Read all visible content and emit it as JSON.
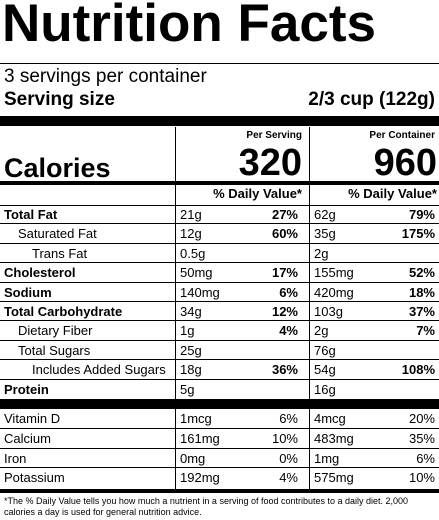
{
  "title": "Nutrition Facts",
  "servings_per_container": "3 servings per container",
  "serving_size_label": "Serving size",
  "serving_size_value": "2/3 cup (122g)",
  "columns": {
    "per_serving": "Per Serving",
    "per_container": "Per Container"
  },
  "calories": {
    "label": "Calories",
    "per_serving": "320",
    "per_container": "960"
  },
  "daily_value_header": "% Daily Value*",
  "nutrients": [
    {
      "name": "Total Fat",
      "bold": true,
      "indent": 0,
      "amt1": "21g",
      "dv1": "27%",
      "amt2": "62g",
      "dv2": "79%"
    },
    {
      "name": "Saturated Fat",
      "bold": false,
      "indent": 1,
      "amt1": "12g",
      "dv1": "60%",
      "amt2": "35g",
      "dv2": "175%"
    },
    {
      "name": "Trans Fat",
      "bold": false,
      "indent": 2,
      "amt1": "0.5g",
      "dv1": "",
      "amt2": "2g",
      "dv2": ""
    },
    {
      "name": "Cholesterol",
      "bold": true,
      "indent": 0,
      "amt1": "50mg",
      "dv1": "17%",
      "amt2": "155mg",
      "dv2": "52%"
    },
    {
      "name": "Sodium",
      "bold": true,
      "indent": 0,
      "amt1": "140mg",
      "dv1": "6%",
      "amt2": "420mg",
      "dv2": "18%"
    },
    {
      "name": "Total Carbohydrate",
      "bold": true,
      "indent": 0,
      "amt1": "34g",
      "dv1": "12%",
      "amt2": "103g",
      "dv2": "37%"
    },
    {
      "name": "Dietary Fiber",
      "bold": false,
      "indent": 1,
      "amt1": "1g",
      "dv1": "4%",
      "amt2": "2g",
      "dv2": "7%"
    },
    {
      "name": "Total Sugars",
      "bold": false,
      "indent": 1,
      "amt1": "25g",
      "dv1": "",
      "amt2": "76g",
      "dv2": ""
    },
    {
      "name": "Includes Added Sugars",
      "bold": false,
      "indent": 3,
      "amt1": "18g",
      "dv1": "36%",
      "amt2": "54g",
      "dv2": "108%"
    },
    {
      "name": "Protein",
      "bold": true,
      "indent": 0,
      "amt1": "5g",
      "dv1": "",
      "amt2": "16g",
      "dv2": ""
    }
  ],
  "vitamins": [
    {
      "name": "Vitamin D",
      "amt1": "1mcg",
      "dv1": "6%",
      "amt2": "4mcg",
      "dv2": "20%"
    },
    {
      "name": "Calcium",
      "amt1": "161mg",
      "dv1": "10%",
      "amt2": "483mg",
      "dv2": "35%"
    },
    {
      "name": "Iron",
      "amt1": "0mg",
      "dv1": "0%",
      "amt2": "1mg",
      "dv2": "6%"
    },
    {
      "name": "Potassium",
      "amt1": "192mg",
      "dv1": "4%",
      "amt2": "575mg",
      "dv2": "10%"
    }
  ],
  "footnote": "*The % Daily Value tells you how much a nutrient in a serving of food contributes to a daily diet. 2,000 calories a day is used for general nutrition advice."
}
